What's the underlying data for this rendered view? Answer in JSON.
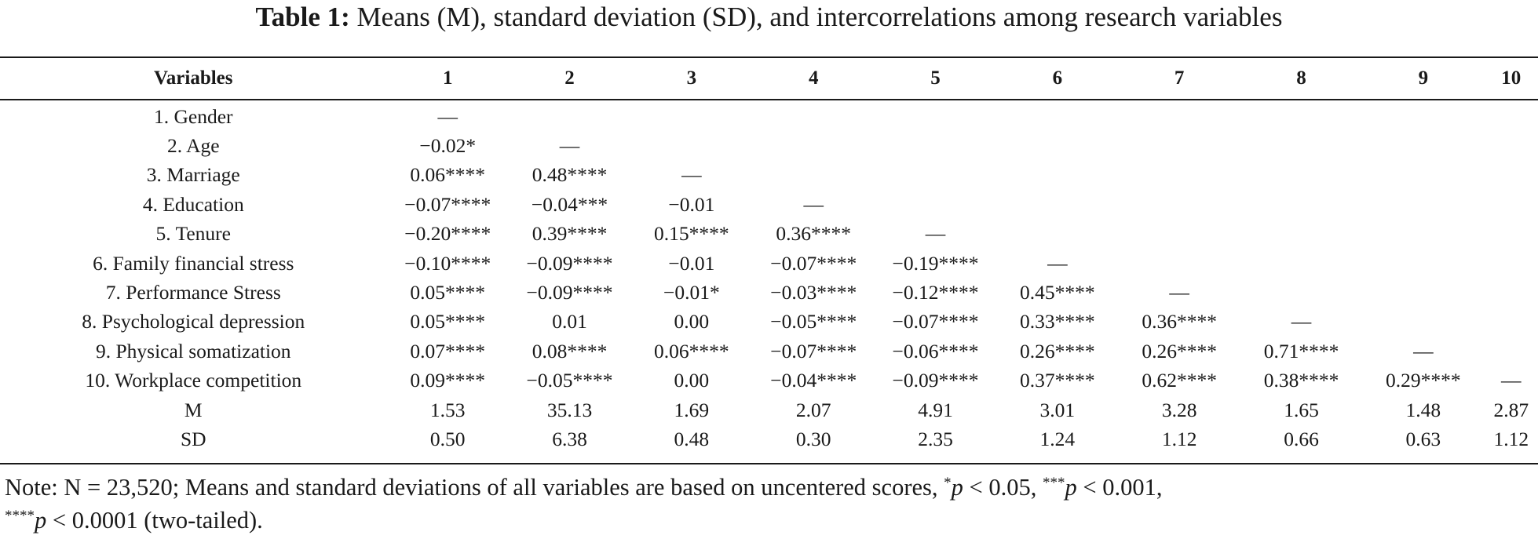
{
  "caption": {
    "label": "Table 1:",
    "text": " Means (M), standard deviation (SD), and intercorrelations among research variables"
  },
  "table": {
    "headers": [
      "Variables",
      "1",
      "2",
      "3",
      "4",
      "5",
      "6",
      "7",
      "8",
      "9",
      "10"
    ],
    "rows": [
      [
        "1. Gender",
        "—",
        "",
        "",
        "",
        "",
        "",
        "",
        "",
        "",
        ""
      ],
      [
        "2. Age",
        "−0.02*",
        "—",
        "",
        "",
        "",
        "",
        "",
        "",
        "",
        ""
      ],
      [
        "3. Marriage",
        "0.06****",
        "0.48****",
        "—",
        "",
        "",
        "",
        "",
        "",
        "",
        ""
      ],
      [
        "4. Education",
        "−0.07****",
        "−0.04***",
        "−0.01",
        "—",
        "",
        "",
        "",
        "",
        "",
        ""
      ],
      [
        "5. Tenure",
        "−0.20****",
        "0.39****",
        "0.15****",
        "0.36****",
        "—",
        "",
        "",
        "",
        "",
        ""
      ],
      [
        "6. Family financial stress",
        "−0.10****",
        "−0.09****",
        "−0.01",
        "−0.07****",
        "−0.19****",
        "—",
        "",
        "",
        "",
        ""
      ],
      [
        "7. Performance Stress",
        "0.05****",
        "−0.09****",
        "−0.01*",
        "−0.03****",
        "−0.12****",
        "0.45****",
        "—",
        "",
        "",
        ""
      ],
      [
        "8. Psychological depression",
        "0.05****",
        "0.01",
        "0.00",
        "−0.05****",
        "−0.07****",
        "0.33****",
        "0.36****",
        "—",
        "",
        ""
      ],
      [
        "9. Physical somatization",
        "0.07****",
        "0.08****",
        "0.06****",
        "−0.07****",
        "−0.06****",
        "0.26****",
        "0.26****",
        "0.71****",
        "—",
        ""
      ],
      [
        "10. Workplace competition",
        "0.09****",
        "−0.05****",
        "0.00",
        "−0.04****",
        "−0.09****",
        "0.37****",
        "0.62****",
        "0.38****",
        "0.29****",
        "—"
      ],
      [
        "M",
        "1.53",
        "35.13",
        "1.69",
        "2.07",
        "4.91",
        "3.01",
        "3.28",
        "1.65",
        "1.48",
        "2.87"
      ],
      [
        "SD",
        "0.50",
        "6.38",
        "0.48",
        "0.30",
        "2.35",
        "1.24",
        "1.12",
        "0.66",
        "0.63",
        "1.12"
      ]
    ]
  },
  "note": {
    "part1": "Note: N = 23,520; Means and standard deviations of all variables are based on uncentered scores, ",
    "sig1_marker": "*",
    "sig1_p": "p",
    "sig1_text": " < 0.05, ",
    "sig3_marker": "***",
    "sig3_p": "p",
    "sig3_text": " < 0.001,",
    "sig4_marker": "****",
    "sig4_p": "p",
    "sig4_text": " < 0.0001 (two-tailed)."
  }
}
